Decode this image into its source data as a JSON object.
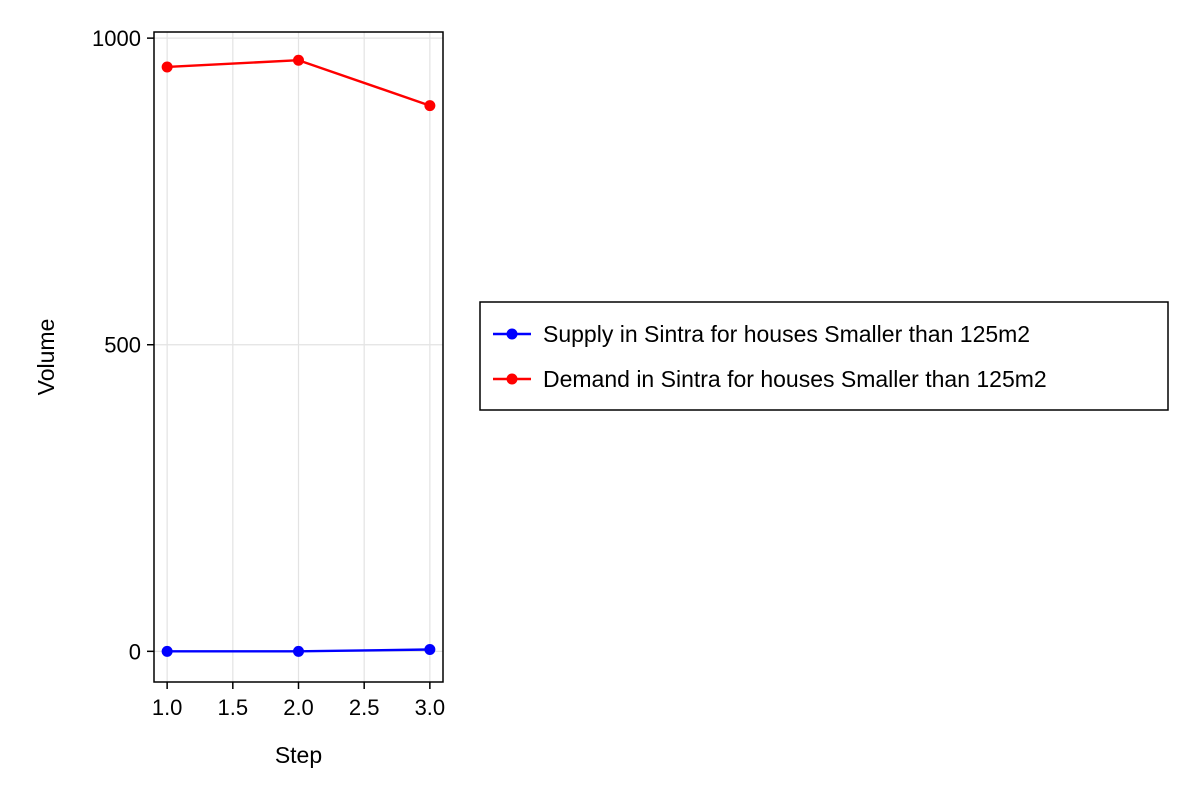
{
  "chart_data": {
    "type": "line",
    "title": "",
    "xlabel": "Step",
    "ylabel": "Volume",
    "x": [
      1.0,
      2.0,
      3.0
    ],
    "xlim": [
      0.9,
      3.1
    ],
    "ylim": [
      -50,
      1010
    ],
    "xticks": [
      1.0,
      1.5,
      2.0,
      2.5,
      3.0
    ],
    "xtick_labels": [
      "1.0",
      "1.5",
      "2.0",
      "2.5",
      "3.0"
    ],
    "yticks": [
      0,
      500,
      1000
    ],
    "ytick_labels": [
      "0",
      "500",
      "1000"
    ],
    "grid": true,
    "legend_position": "right",
    "series": [
      {
        "name": "Supply in Sintra for houses Smaller than 125m2",
        "color": "#0000ff",
        "values": [
          0,
          0,
          3
        ]
      },
      {
        "name": "Demand in Sintra for houses Smaller than 125m2",
        "color": "#ff0000",
        "values": [
          953,
          964,
          890
        ]
      }
    ]
  }
}
